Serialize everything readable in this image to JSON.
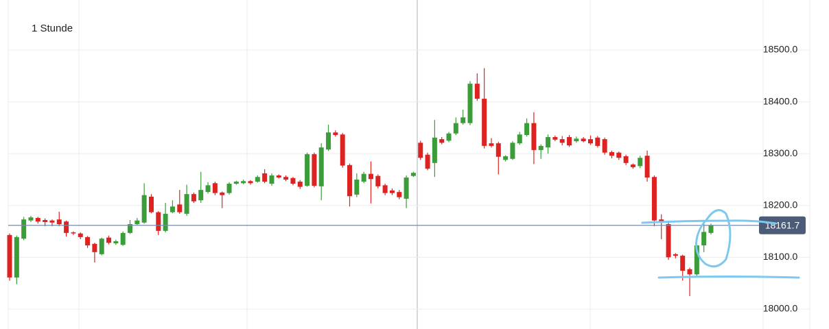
{
  "chart_data": {
    "type": "candlestick",
    "title": "1 Stunde",
    "open": [
      18143,
      18061,
      18136,
      18171,
      18176,
      18172,
      18171,
      18173,
      18169,
      18148,
      18146,
      18139,
      18126,
      18106,
      18138,
      18127,
      18124,
      18147,
      18164,
      18167,
      18217,
      18187,
      18151,
      18187,
      18202,
      18184,
      18222,
      18210,
      18226,
      18243,
      18225,
      18224,
      18242,
      18243,
      18247,
      18246,
      18262,
      18242,
      18258,
      18255,
      18253,
      18246,
      18238,
      18299,
      18237,
      18308,
      18341,
      18337,
      18278,
      18221,
      18246,
      18261,
      18257,
      18239,
      18229,
      18226,
      18213,
      18257,
      18321,
      18298,
      18282,
      18328,
      18325,
      18339,
      18359,
      18359,
      18435,
      18406,
      18320,
      18320,
      18288,
      18290,
      18320,
      18336,
      18359,
      18307,
      18312,
      18332,
      18328,
      18332,
      18324,
      18329,
      18328,
      18331,
      18328,
      18303,
      18302,
      18295,
      18279,
      18276,
      18296,
      18255,
      18173,
      18164,
      18106,
      18103,
      18077,
      18067,
      18123,
      18147
    ],
    "high": [
      18146,
      18142,
      18178,
      18180,
      18178,
      18175,
      18173,
      18188,
      18171,
      18150,
      18148,
      18141,
      18128,
      18138,
      18142,
      18134,
      18150,
      18172,
      18176,
      18243,
      18222,
      18189,
      18205,
      18210,
      18230,
      18240,
      18225,
      18265,
      18245,
      18246,
      18227,
      18245,
      18248,
      18250,
      18249,
      18258,
      18270,
      18262,
      18260,
      18258,
      18255,
      18249,
      18302,
      18302,
      18320,
      18356,
      18345,
      18340,
      18281,
      18262,
      18265,
      18285,
      18260,
      18242,
      18233,
      18230,
      18258,
      18265,
      18325,
      18302,
      18365,
      18332,
      18342,
      18370,
      18385,
      18440,
      18455,
      18465,
      18330,
      18323,
      18297,
      18324,
      18342,
      18368,
      18380,
      18318,
      18337,
      18335,
      18334,
      18336,
      18333,
      18332,
      18335,
      18334,
      18331,
      18306,
      18304,
      18298,
      18281,
      18296,
      18306,
      18258,
      18183,
      18167,
      18108,
      18105,
      18080,
      18126,
      18170,
      18165
    ],
    "low": [
      18055,
      18048,
      18133,
      18168,
      18165,
      18160,
      18160,
      18160,
      18140,
      18143,
      18135,
      18118,
      18090,
      18104,
      18125,
      18124,
      18122,
      18145,
      18162,
      18165,
      18185,
      18143,
      18148,
      18185,
      18184,
      18180,
      18205,
      18205,
      18223,
      18220,
      18195,
      18221,
      18240,
      18241,
      18240,
      18244,
      18243,
      18238,
      18252,
      18247,
      18239,
      18232,
      18236,
      18235,
      18210,
      18305,
      18333,
      18273,
      18198,
      18216,
      18243,
      18204,
      18233,
      18220,
      18220,
      18212,
      18195,
      18255,
      18288,
      18268,
      18255,
      18318,
      18322,
      18336,
      18356,
      18355,
      18402,
      18310,
      18312,
      18260,
      18285,
      18288,
      18317,
      18333,
      18280,
      18290,
      18300,
      18324,
      18316,
      18313,
      18321,
      18322,
      18317,
      18312,
      18298,
      18291,
      18288,
      18278,
      18271,
      18272,
      18246,
      18160,
      18135,
      18095,
      18098,
      18055,
      18025,
      18064,
      18110,
      18144
    ],
    "close": [
      18061,
      18139,
      18173,
      18177,
      18169,
      18168,
      18167,
      18164,
      18147,
      18146,
      18139,
      18123,
      18110,
      18136,
      18128,
      18131,
      18147,
      18164,
      18171,
      18220,
      18187,
      18151,
      18184,
      18198,
      18187,
      18222,
      18208,
      18230,
      18239,
      18224,
      18220,
      18242,
      18246,
      18247,
      18243,
      18255,
      18246,
      18258,
      18254,
      18250,
      18242,
      18236,
      18299,
      18238,
      18312,
      18341,
      18336,
      18277,
      18218,
      18250,
      18261,
      18251,
      18237,
      18224,
      18224,
      18216,
      18254,
      18263,
      18292,
      18271,
      18331,
      18321,
      18339,
      18359,
      18370,
      18435,
      18406,
      18315,
      18315,
      18294,
      18295,
      18321,
      18337,
      18359,
      18307,
      18315,
      18332,
      18327,
      18321,
      18316,
      18329,
      18324,
      18320,
      18315,
      18302,
      18296,
      18292,
      18282,
      18274,
      18292,
      18254,
      18171,
      18168,
      18100,
      18103,
      18074,
      18067,
      18123,
      18149,
      18161.7
    ],
    "up_color": "#3a9d3a",
    "down_color": "#dd2222",
    "last_price": 18161.7,
    "ylim": [
      17961.6,
      18596.6
    ],
    "yticks": [
      {
        "value": 18000,
        "label": "18000.0"
      },
      {
        "value": 18100,
        "label": "18100.0"
      },
      {
        "value": 18200,
        "label": "18200.0"
      },
      {
        "value": 18300,
        "label": "18300.0"
      },
      {
        "value": 18400,
        "label": "18400.0"
      },
      {
        "value": 18500,
        "label": "18500.0"
      }
    ],
    "grid": true
  }
}
